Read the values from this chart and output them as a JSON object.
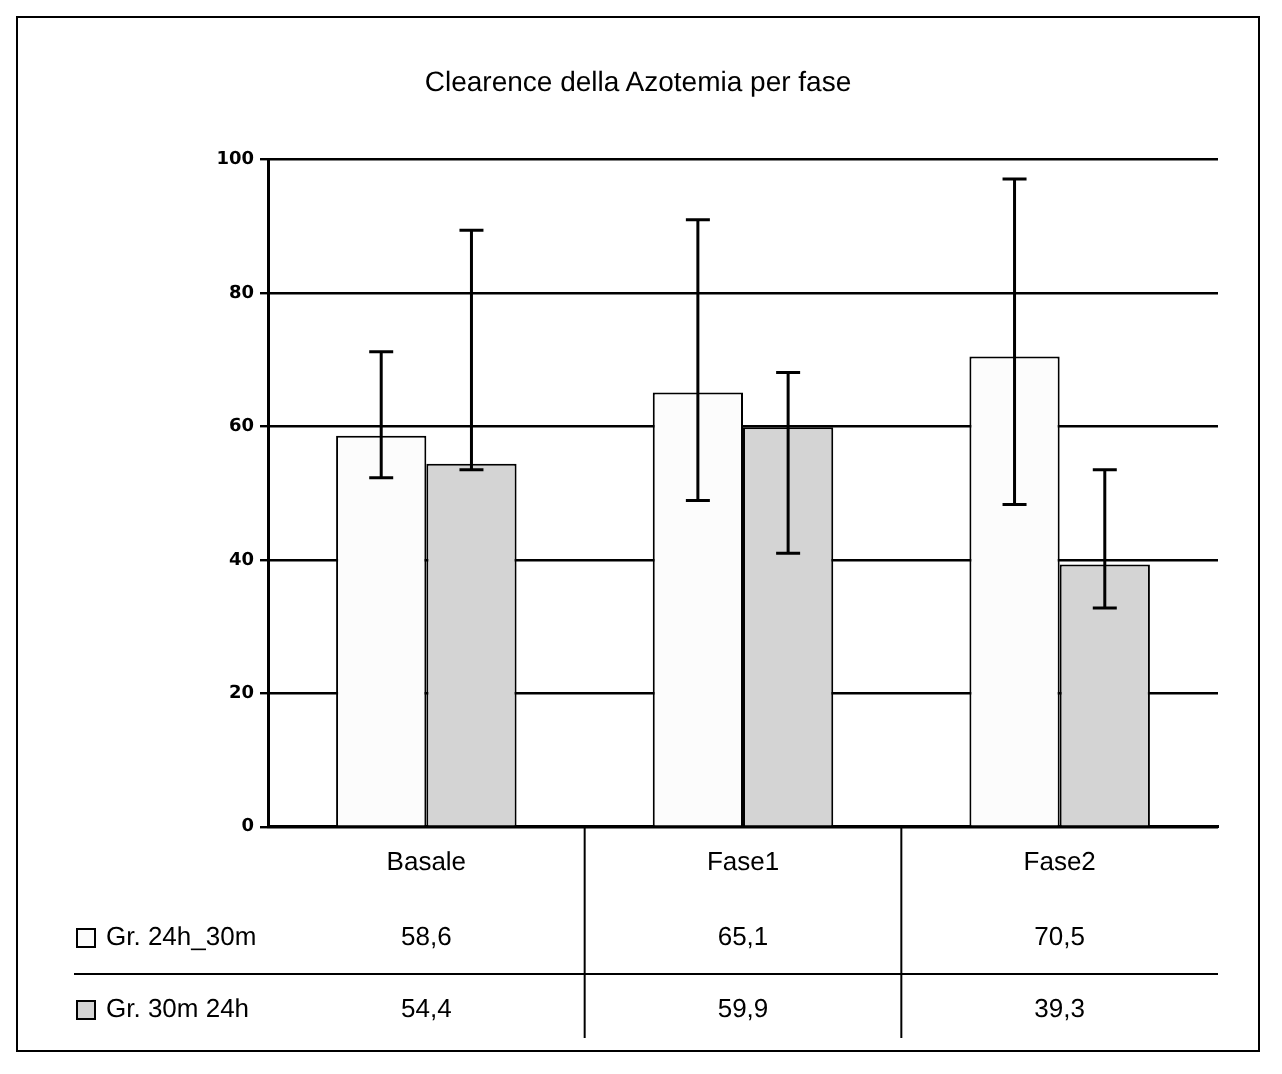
{
  "chart_data": {
    "type": "bar",
    "title": "Clearence della Azotemia per fase",
    "categories": [
      "Basale",
      "Fase1",
      "Fase2"
    ],
    "series": [
      {
        "name": "Gr. 24h_30m",
        "color": "#fcfcfc",
        "values": [
          58.6,
          65.1,
          70.5
        ],
        "value_labels": [
          "58,6",
          "65,1",
          "70,5"
        ],
        "errors": [
          [
            52.3,
            71.2
          ],
          [
            48.9,
            91.0
          ],
          [
            48.3,
            97.1
          ]
        ]
      },
      {
        "name": "Gr. 30m 24h",
        "color": "#d4d4d4",
        "values": [
          54.4,
          59.9,
          39.3
        ],
        "value_labels": [
          "54,4",
          "59,9",
          "39,3"
        ],
        "errors": [
          [
            53.5,
            89.4
          ],
          [
            41.0,
            68.1
          ],
          [
            32.8,
            53.5
          ]
        ]
      }
    ],
    "ylim": [
      0,
      100
    ],
    "yticks": [
      0,
      20,
      40,
      60,
      80,
      100
    ],
    "grid": "y",
    "legend": "bottom"
  }
}
